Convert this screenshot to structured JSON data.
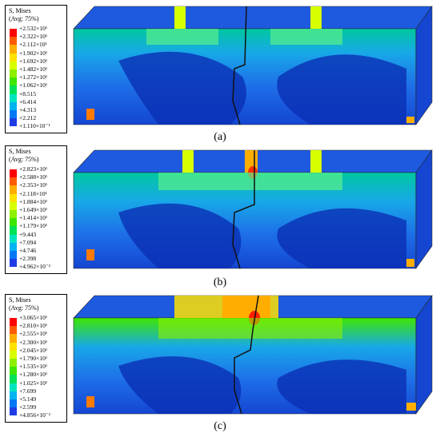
{
  "panels": [
    {
      "caption": "(a)",
      "legend": {
        "title_line1": "S, Mises",
        "title_line2": "(Avg: 75%)",
        "levels": [
          "+2.532×10¹",
          "+2.322×10¹",
          "+2.112×10¹",
          "+1.902×10¹",
          "+1.692×10¹",
          "+1.482×10¹",
          "+1.272×10¹",
          "+1.062×10¹",
          "+8.515",
          "+6.414",
          "+4.313",
          "+2.212",
          "+1.110×10⁻¹"
        ]
      }
    },
    {
      "caption": "(b)",
      "legend": {
        "title_line1": "S, Mises",
        "title_line2": "(Avg: 75%)",
        "levels": [
          "+2.823×10¹",
          "+2.588×10¹",
          "+2.353×10¹",
          "+2.118×10¹",
          "+1.884×10¹",
          "+1.649×10¹",
          "+1.414×10¹",
          "+1.179×10¹",
          "+9.443",
          "+7.094",
          "+4.746",
          "+2.398",
          "+4.962×10⁻²"
        ]
      }
    },
    {
      "caption": "(c)",
      "legend": {
        "title_line1": "S, Mises",
        "title_line2": "(Avg: 75%)",
        "levels": [
          "+3.065×10¹",
          "+2.810×10¹",
          "+2.555×10¹",
          "+2.300×10¹",
          "+2.045×10¹",
          "+1.790×10¹",
          "+1.535×10¹",
          "+1.280×10¹",
          "+1.025×10¹",
          "+7.699",
          "+5.149",
          "+2.599",
          "+4.856×10⁻²"
        ]
      }
    }
  ],
  "colors": {
    "scale": [
      "#ff0000",
      "#ff5a00",
      "#ffae00",
      "#ffe100",
      "#d8ff00",
      "#8cf000",
      "#3ee600",
      "#00e258",
      "#00e5c0",
      "#00b4f0",
      "#0078f5",
      "#1e3ce6",
      "#0000c8"
    ],
    "beam_base": "#1446d2",
    "beam_low": "#0a2fb4"
  }
}
